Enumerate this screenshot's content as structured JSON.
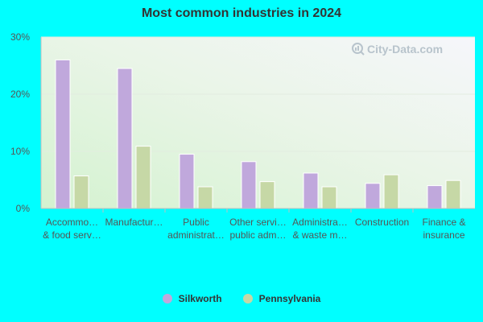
{
  "page": {
    "background": "#00ffff"
  },
  "chart_data": {
    "type": "bar",
    "title": "Most common industries in 2024",
    "categories": [
      [
        "Accommo…",
        "& food serv…"
      ],
      [
        "Manufactur…"
      ],
      [
        "Public",
        "administrat…"
      ],
      [
        "Other servi…",
        "public adm…"
      ],
      [
        "Administra…",
        "& waste m…"
      ],
      [
        "Construction"
      ],
      [
        "Finance &",
        "insurance"
      ]
    ],
    "series": [
      {
        "name": "Silkworth",
        "color": "#c0a8dc",
        "values": [
          26.0,
          24.5,
          9.5,
          8.2,
          6.2,
          4.4,
          4.0
        ]
      },
      {
        "name": "Pennsylvania",
        "color": "#c6d8a6",
        "values": [
          5.7,
          10.9,
          3.8,
          4.7,
          3.8,
          5.9,
          4.9
        ]
      }
    ],
    "ylim": [
      0,
      30
    ],
    "yticks": [
      0,
      10,
      20,
      30
    ],
    "ytick_labels": [
      "0%",
      "10%",
      "20%",
      "30%"
    ],
    "grid": true,
    "legend_position": "bottom",
    "watermark": "City-Data.com"
  }
}
